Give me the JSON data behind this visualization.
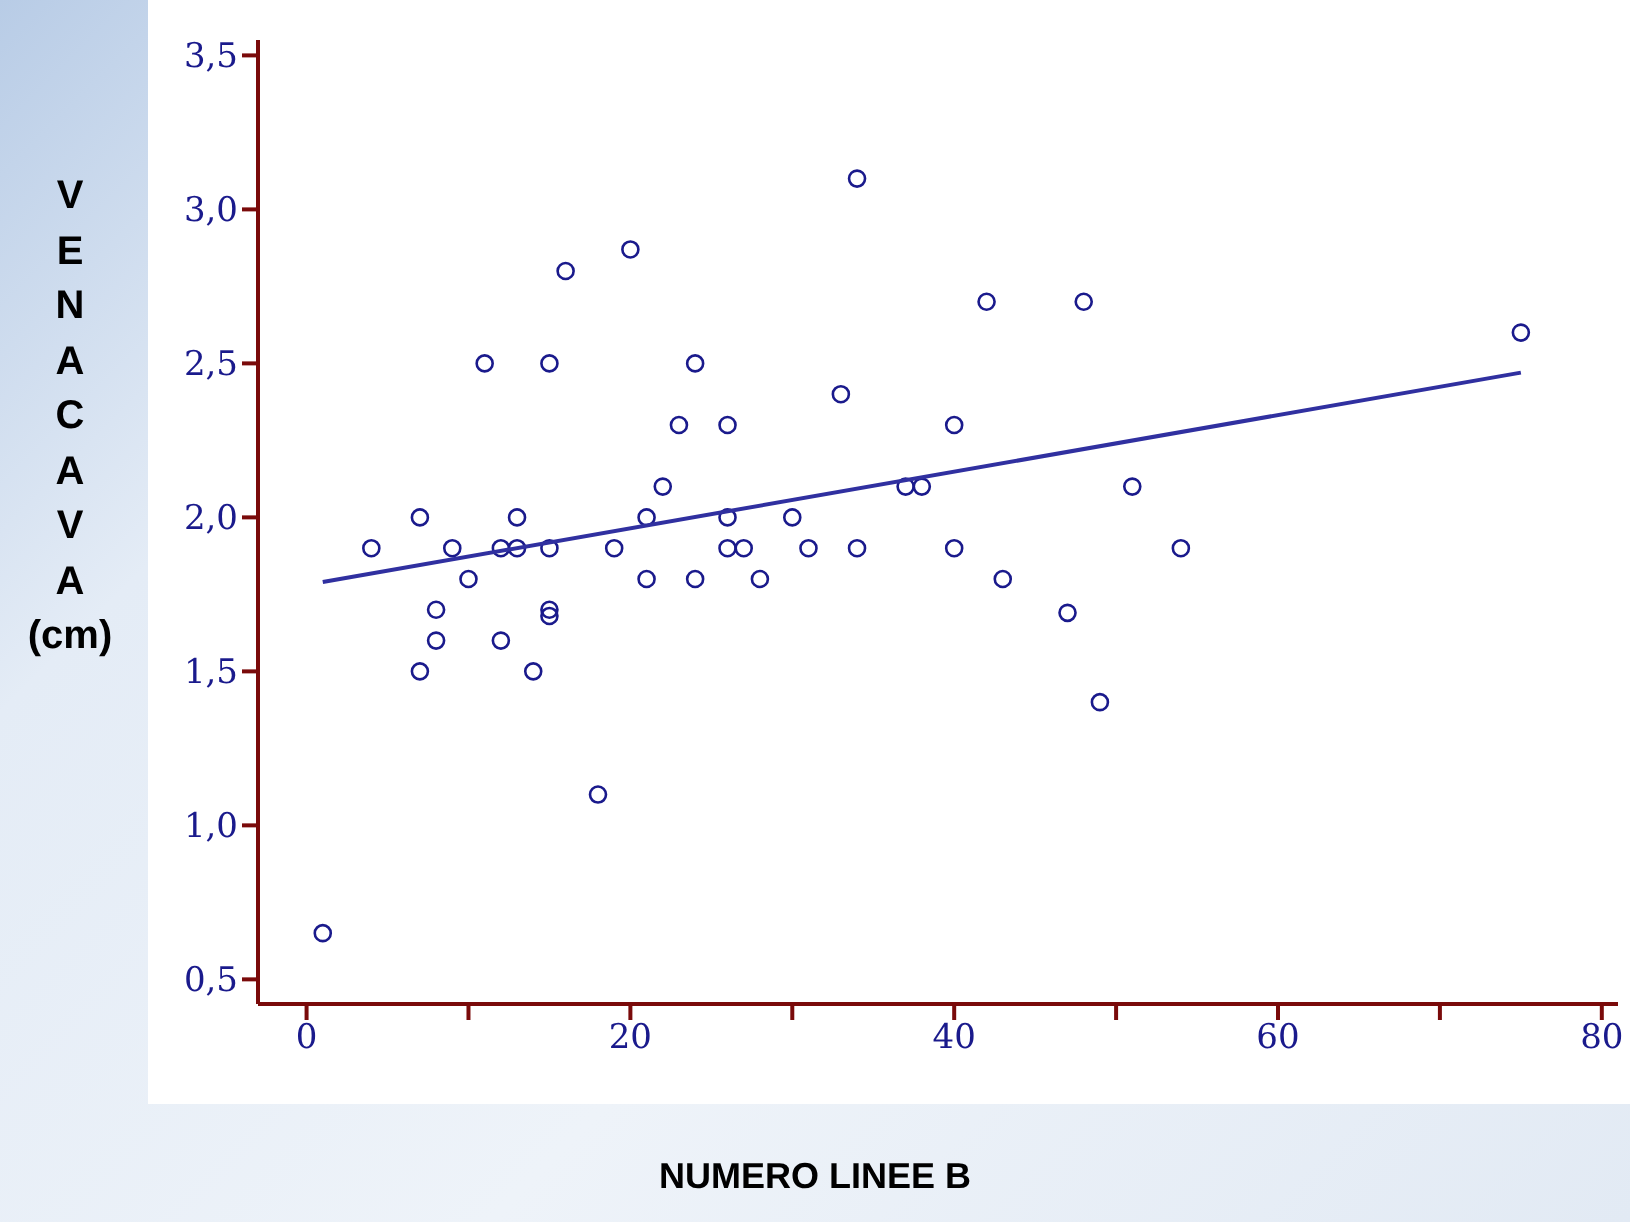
{
  "chart_data": {
    "type": "scatter",
    "xlabel": "NUMERO LINEE B",
    "ylabel": "VENA CAVA (cm)",
    "xlim": [
      -3,
      81
    ],
    "ylim": [
      0.42,
      3.55
    ],
    "xticks": [
      0,
      {
        "value": 10,
        "label": null
      },
      20,
      {
        "value": 30,
        "label": null
      },
      40,
      {
        "value": 50,
        "label": null
      },
      60,
      {
        "value": 70,
        "label": null
      },
      80
    ],
    "yticks": [
      {
        "value": 0.5,
        "label": "0,5"
      },
      {
        "value": 1,
        "label": "1,0"
      },
      {
        "value": 1.5,
        "label": "1,5"
      },
      {
        "value": 2,
        "label": "2,0"
      },
      {
        "value": 2.5,
        "label": "2,5"
      },
      {
        "value": 3,
        "label": "3,0"
      },
      {
        "value": 3.5,
        "label": "3,5"
      }
    ],
    "grid": false,
    "legend": false,
    "marker": "circle",
    "series": [
      {
        "color": "#1a1a8c",
        "x": [
          1,
          4,
          7,
          7,
          8,
          8,
          9,
          10,
          11,
          12,
          12,
          13,
          13,
          14,
          15,
          15,
          15,
          15,
          16,
          18,
          19,
          20,
          21,
          21,
          22,
          23,
          24,
          24,
          26,
          26,
          26,
          27,
          28,
          30,
          31,
          33,
          34,
          34,
          37,
          38,
          40,
          40,
          42,
          43,
          47,
          48,
          49,
          51,
          54,
          75
        ],
        "values": [
          0.65,
          1.9,
          2.0,
          1.5,
          1.7,
          1.6,
          1.9,
          1.8,
          2.5,
          1.9,
          1.6,
          1.9,
          2.0,
          1.5,
          2.5,
          1.9,
          1.7,
          1.68,
          2.8,
          1.1,
          1.9,
          2.87,
          2.0,
          1.8,
          2.1,
          2.3,
          2.5,
          1.8,
          2.3,
          2.0,
          1.9,
          1.9,
          1.8,
          2.0,
          1.9,
          2.4,
          3.1,
          1.9,
          2.1,
          2.1,
          2.3,
          1.9,
          2.7,
          1.8,
          1.69,
          2.7,
          1.4,
          2.1,
          1.9,
          2.6
        ]
      },
      {
        "type": "line",
        "color": "#3030a0",
        "x": [
          1,
          75
        ],
        "values": [
          1.79,
          2.47
        ],
        "marker": "none",
        "line_style": "solid"
      }
    ]
  }
}
